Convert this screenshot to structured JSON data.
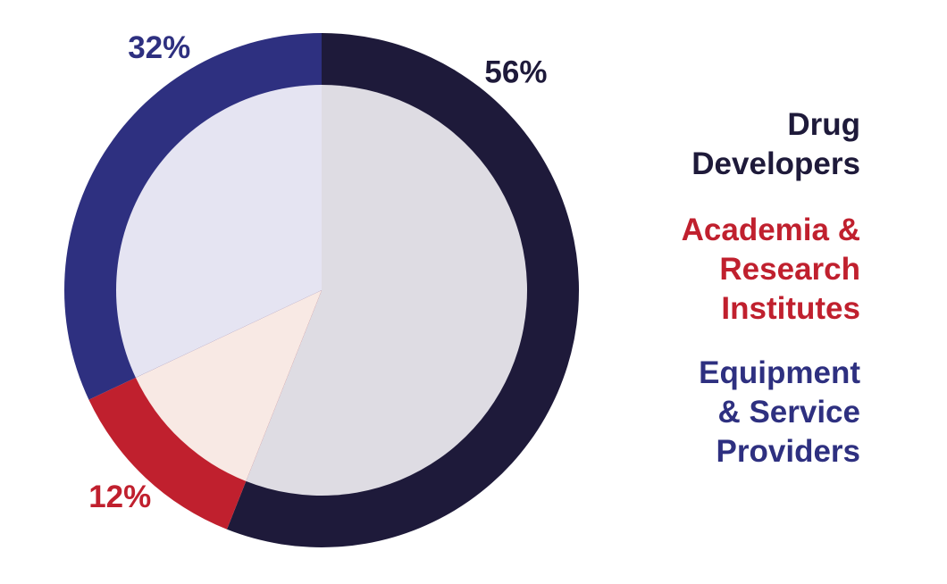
{
  "chart_data": {
    "type": "pie",
    "categories": [
      "Drug Developers",
      "Academia & Research Institutes",
      "Equipment & Service Providers"
    ],
    "values": [
      56,
      12,
      32
    ],
    "value_labels": [
      "56%",
      "12%",
      "32%"
    ],
    "colors": [
      "#1e1a3a",
      "#c0202e",
      "#2e3080"
    ],
    "inner_colors": [
      "#dedce3",
      "#f8e9e4",
      "#e5e4f2"
    ]
  }
}
